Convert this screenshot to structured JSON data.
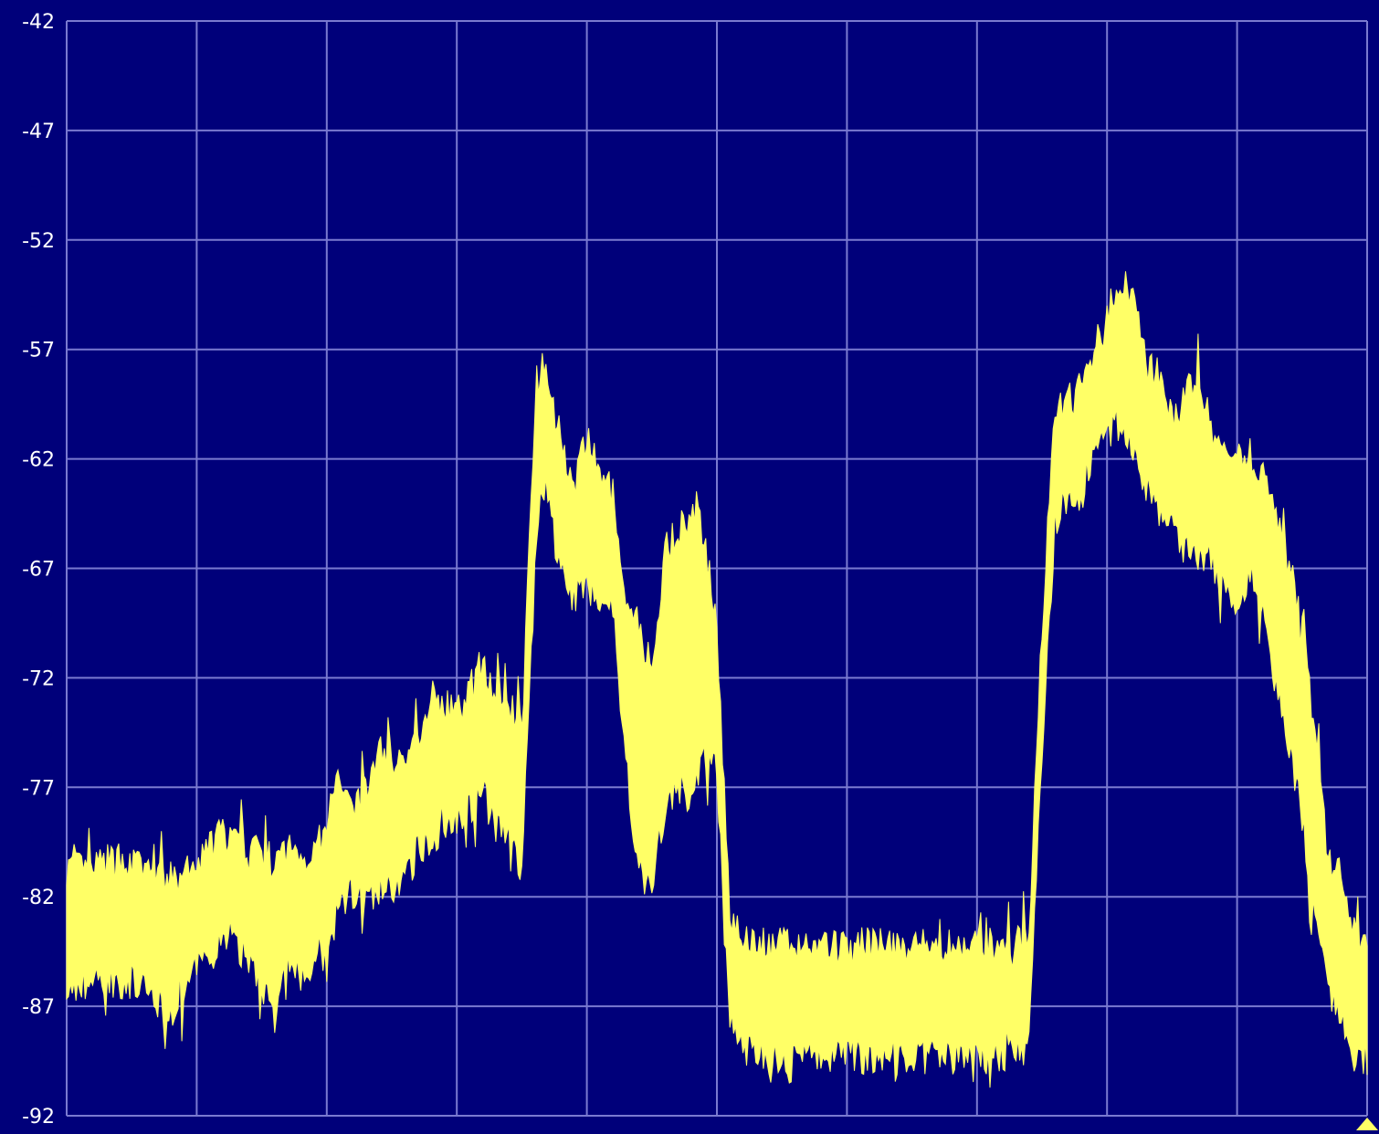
{
  "colors": {
    "background": "#00007a",
    "plot_background": "#00007a",
    "grid": "#7a7ad0",
    "trace": "#ffff66",
    "tick_text": "#ffffff"
  },
  "marker_icon": "triangle-marker-icon",
  "chart_data": {
    "type": "area",
    "title": "",
    "xlabel": "",
    "ylabel": "",
    "ylim": [
      -92,
      -42
    ],
    "xlim": [
      0,
      100
    ],
    "grid": true,
    "y_ticks": [
      "-42",
      "-47",
      "-52",
      "-57",
      "-62",
      "-67",
      "-72",
      "-77",
      "-82",
      "-87",
      "-92"
    ],
    "y_tick_values": [
      -42,
      -47,
      -52,
      -57,
      -62,
      -67,
      -72,
      -77,
      -82,
      -87,
      -92
    ],
    "x_grid_divisions": 10,
    "series": [
      {
        "style": "envelope",
        "x": [
          0,
          2,
          4,
          6,
          8,
          10,
          11,
          12,
          14,
          15,
          16,
          17,
          18,
          20,
          21,
          22,
          23,
          24,
          26,
          27,
          28,
          30,
          32,
          33,
          34,
          35,
          36,
          36.5,
          37,
          38,
          39,
          40,
          42,
          43,
          44,
          45,
          46,
          47,
          48,
          48.5,
          49,
          50,
          51,
          52,
          53,
          55,
          56,
          57,
          58,
          60,
          62,
          64,
          66,
          68,
          70,
          72,
          74,
          75,
          75.5,
          76,
          77,
          78,
          79,
          80,
          81,
          82,
          83,
          84,
          85,
          86,
          87,
          88,
          89,
          90,
          91,
          92,
          93,
          95,
          96,
          97,
          98,
          99,
          100
        ],
        "upper": [
          -81,
          -81,
          -80.5,
          -81,
          -81.5,
          -81,
          -80,
          -79.5,
          -80,
          -80,
          -81,
          -80,
          -80.5,
          -79.5,
          -76.5,
          -78,
          -77.5,
          -75.5,
          -76,
          -75,
          -73,
          -74,
          -71.5,
          -73,
          -73.5,
          -74.5,
          -60,
          -57.5,
          -58.5,
          -61.5,
          -63.5,
          -61.5,
          -64,
          -69.5,
          -70,
          -72.5,
          -66.5,
          -65.5,
          -65,
          -64.5,
          -66,
          -70,
          -83,
          -84,
          -84.5,
          -84.5,
          -84.5,
          -84.5,
          -84.5,
          -84.5,
          -84.5,
          -84.5,
          -84.5,
          -84.5,
          -84.5,
          -84.5,
          -84,
          -70,
          -65,
          -60,
          -59.5,
          -59,
          -57.5,
          -55.5,
          -54,
          -55,
          -58,
          -58.5,
          -60.5,
          -59.5,
          -58.5,
          -61,
          -62,
          -62,
          -62,
          -63,
          -65,
          -70,
          -75,
          -80,
          -81.5,
          -84,
          -85
        ],
        "lower": [
          -86,
          -85.5,
          -85.5,
          -86,
          -87,
          -85,
          -84.5,
          -83.5,
          -84.5,
          -85.5,
          -87.5,
          -84.5,
          -85.5,
          -84.5,
          -82,
          -81.5,
          -82,
          -81.5,
          -81,
          -79.5,
          -79,
          -78,
          -77,
          -78.5,
          -79,
          -80.5,
          -67,
          -62.5,
          -63.5,
          -67,
          -68,
          -67.5,
          -68.5,
          -75.5,
          -80.5,
          -81.5,
          -77.5,
          -77,
          -77,
          -76,
          -75.5,
          -76,
          -87,
          -88.5,
          -89,
          -89,
          -89,
          -89,
          -89,
          -89,
          -89,
          -89,
          -89,
          -89,
          -89,
          -89,
          -88.5,
          -75,
          -70,
          -64.5,
          -63.5,
          -63.5,
          -61,
          -60.5,
          -60,
          -61.5,
          -63,
          -64,
          -65,
          -66,
          -66,
          -66,
          -67.5,
          -68,
          -67,
          -69,
          -72,
          -78,
          -83,
          -86,
          -87.5,
          -89,
          -89
        ]
      }
    ]
  }
}
